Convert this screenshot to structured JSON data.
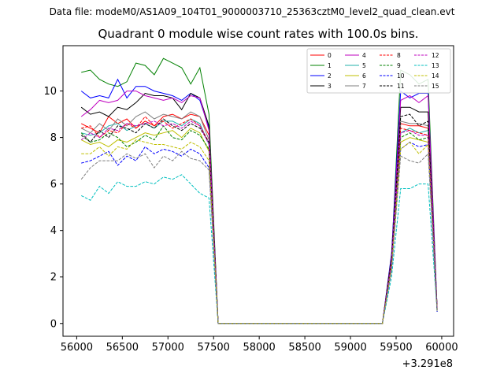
{
  "figure": {
    "suptitle": "Data file: modeM0/AS1A09_104T01_9000003710_25363cztM0_level2_quad_clean.evt",
    "title": "Quadrant 0 module wise count rates with 100.0s bins."
  },
  "chart_data": {
    "type": "line",
    "title": "Quadrant 0 module wise count rates with 100.0s bins.",
    "xlabel": "",
    "ylabel": "",
    "x_offset_label": "+3.291e8",
    "xlim": [
      55850,
      60130
    ],
    "ylim": [
      -0.55,
      11.95
    ],
    "xticks": [
      56000,
      56500,
      57000,
      57500,
      58000,
      58500,
      59000,
      59500,
      60000
    ],
    "yticks": [
      0,
      2,
      4,
      6,
      8,
      10
    ],
    "grid": false,
    "legend": {
      "placement": "top-right",
      "columns": 4
    },
    "segments": [
      {
        "x_start": 56050,
        "step": 100,
        "count": 16
      },
      {
        "x_start": 59350,
        "step": 100,
        "count": 7
      }
    ],
    "series": [
      {
        "name": "0",
        "color": "#ff0000",
        "dash": "solid",
        "values": [
          8.6,
          8.4,
          8.2,
          8.9,
          8.6,
          8.8,
          8.4,
          8.7,
          8.5,
          8.9,
          9.0,
          8.8,
          9.0,
          8.9,
          8.1,
          0.0,
          0.0,
          2.8,
          8.6,
          8.5,
          8.5,
          8.4,
          0.7
        ]
      },
      {
        "name": "1",
        "color": "#008000",
        "dash": "solid",
        "values": [
          10.8,
          10.9,
          10.5,
          10.3,
          10.2,
          10.4,
          11.2,
          11.1,
          10.7,
          11.4,
          11.2,
          11.0,
          10.3,
          11.0,
          9.0,
          0.0,
          0.0,
          2.8,
          10.9,
          10.7,
          10.3,
          10.5,
          0.6
        ]
      },
      {
        "name": "2",
        "color": "#0000ff",
        "dash": "solid",
        "values": [
          10.0,
          9.7,
          9.8,
          9.7,
          10.5,
          9.7,
          10.2,
          10.2,
          10.0,
          9.9,
          9.8,
          9.6,
          9.9,
          9.6,
          8.4,
          0.0,
          0.0,
          3.0,
          10.0,
          9.7,
          9.9,
          9.9,
          0.6
        ]
      },
      {
        "name": "3",
        "color": "#000000",
        "dash": "solid",
        "values": [
          9.3,
          9.0,
          9.1,
          8.9,
          9.3,
          9.2,
          9.5,
          9.9,
          9.8,
          9.8,
          9.7,
          9.2,
          9.9,
          9.7,
          8.5,
          0.0,
          0.0,
          2.9,
          9.3,
          9.3,
          9.1,
          9.1,
          0.6
        ]
      },
      {
        "name": "4",
        "color": "#bf00bf",
        "dash": "solid",
        "values": [
          8.9,
          9.2,
          9.6,
          9.5,
          9.6,
          10.0,
          10.0,
          9.8,
          9.7,
          9.6,
          9.7,
          9.5,
          9.8,
          9.7,
          8.3,
          0.0,
          0.0,
          2.8,
          9.6,
          9.8,
          9.5,
          9.8,
          0.6
        ]
      },
      {
        "name": "5",
        "color": "#20b2aa",
        "dash": "solid",
        "values": [
          8.2,
          8.1,
          8.2,
          8.5,
          8.6,
          8.3,
          8.5,
          8.6,
          8.4,
          8.7,
          8.7,
          8.5,
          8.8,
          8.6,
          7.7,
          0.0,
          0.0,
          2.6,
          8.2,
          8.4,
          8.2,
          8.3,
          0.5
        ]
      },
      {
        "name": "6",
        "color": "#bfbf00",
        "dash": "solid",
        "values": [
          7.9,
          7.7,
          7.8,
          7.6,
          7.9,
          7.8,
          8.0,
          8.2,
          8.1,
          8.2,
          8.3,
          8.0,
          8.4,
          8.2,
          7.4,
          0.0,
          0.0,
          2.5,
          7.8,
          8.0,
          7.9,
          7.8,
          0.5
        ]
      },
      {
        "name": "7",
        "color": "#7f7f7f",
        "dash": "solid",
        "values": [
          8.4,
          8.2,
          8.6,
          8.3,
          8.8,
          8.5,
          8.9,
          9.1,
          8.8,
          9.0,
          8.9,
          8.8,
          9.1,
          8.9,
          7.9,
          0.0,
          0.0,
          2.7,
          8.7,
          8.6,
          8.6,
          8.5,
          0.6
        ]
      },
      {
        "name": "8",
        "color": "#ff0000",
        "dash": "dashed",
        "values": [
          8.4,
          8.5,
          8.0,
          8.3,
          8.2,
          8.6,
          8.4,
          8.9,
          8.5,
          8.7,
          8.4,
          8.6,
          8.8,
          8.5,
          7.8,
          0.0,
          0.0,
          2.7,
          8.4,
          8.3,
          8.2,
          8.1,
          0.6
        ]
      },
      {
        "name": "9",
        "color": "#008000",
        "dash": "dashed",
        "values": [
          8.2,
          7.8,
          7.9,
          8.2,
          8.0,
          7.6,
          7.8,
          8.1,
          7.9,
          8.5,
          8.0,
          7.9,
          8.3,
          8.1,
          7.5,
          0.0,
          0.0,
          2.6,
          8.0,
          8.2,
          7.9,
          8.0,
          0.6
        ]
      },
      {
        "name": "10",
        "color": "#0000ff",
        "dash": "dashed",
        "values": [
          6.9,
          7.0,
          7.2,
          7.4,
          6.8,
          7.2,
          7.0,
          7.6,
          7.3,
          7.5,
          7.4,
          7.2,
          7.5,
          7.3,
          6.7,
          0.0,
          0.0,
          2.3,
          7.5,
          7.8,
          7.6,
          7.7,
          0.5
        ]
      },
      {
        "name": "11",
        "color": "#000000",
        "dash": "dashed",
        "values": [
          8.1,
          7.8,
          8.3,
          8.0,
          8.5,
          8.4,
          8.2,
          8.6,
          8.4,
          8.8,
          8.5,
          8.3,
          8.6,
          8.4,
          7.8,
          0.0,
          0.0,
          2.7,
          8.9,
          9.0,
          8.5,
          8.7,
          0.6
        ]
      },
      {
        "name": "12",
        "color": "#bf00bf",
        "dash": "dashed",
        "values": [
          7.9,
          8.2,
          8.0,
          8.4,
          8.3,
          8.6,
          8.5,
          8.6,
          8.7,
          8.5,
          8.6,
          8.4,
          8.7,
          8.5,
          7.7,
          0.0,
          0.0,
          2.6,
          8.2,
          8.3,
          8.1,
          8.1,
          0.6
        ]
      },
      {
        "name": "13",
        "color": "#00bfbf",
        "dash": "dashed",
        "values": [
          5.5,
          5.3,
          5.9,
          5.6,
          6.1,
          5.9,
          5.9,
          6.1,
          6.0,
          6.3,
          6.2,
          6.4,
          6.0,
          5.6,
          5.4,
          0.0,
          0.0,
          2.0,
          5.8,
          5.8,
          6.0,
          6.0,
          0.5
        ]
      },
      {
        "name": "14",
        "color": "#bfbf00",
        "dash": "dashed",
        "values": [
          7.3,
          7.3,
          7.6,
          7.2,
          7.6,
          7.5,
          7.9,
          7.8,
          7.7,
          7.7,
          7.6,
          7.5,
          7.8,
          7.6,
          7.0,
          0.0,
          0.0,
          2.4,
          7.5,
          7.8,
          7.3,
          7.7,
          0.5
        ]
      },
      {
        "name": "15",
        "color": "#7f7f7f",
        "dash": "dashed",
        "values": [
          6.2,
          6.7,
          7.0,
          7.0,
          7.0,
          7.3,
          7.1,
          7.3,
          6.7,
          7.2,
          7.0,
          7.4,
          7.1,
          7.0,
          6.6,
          0.0,
          0.0,
          2.3,
          7.2,
          7.0,
          6.9,
          7.3,
          0.5
        ]
      }
    ]
  }
}
